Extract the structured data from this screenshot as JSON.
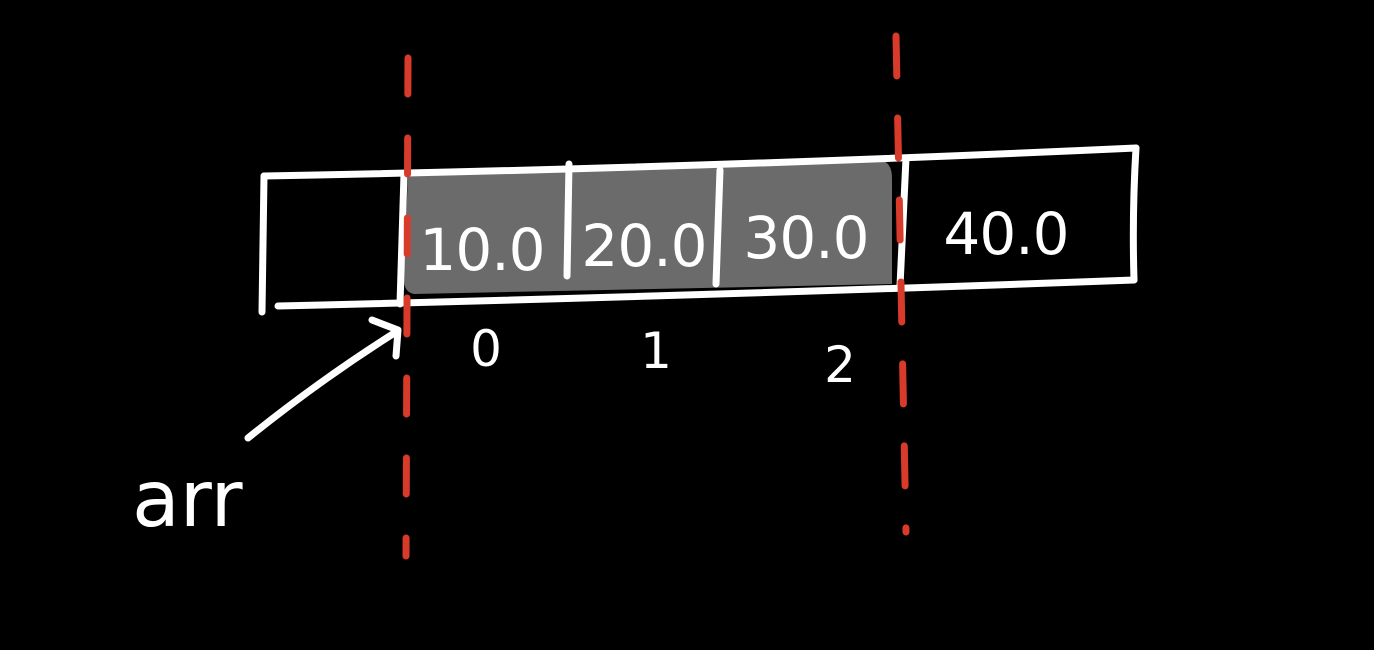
{
  "colors": {
    "background": "#000000",
    "ink": "#ffffff",
    "highlight": "#6b6b6b",
    "boundary": "#d93b2b"
  },
  "array": {
    "cells": [
      {
        "value": "",
        "index": "",
        "highlighted": false
      },
      {
        "value": "10.0",
        "index": "0",
        "highlighted": true
      },
      {
        "value": "20.0",
        "index": "1",
        "highlighted": true
      },
      {
        "value": "30.0",
        "index": "2",
        "highlighted": true
      },
      {
        "value": "40.0",
        "index": "",
        "highlighted": false
      }
    ]
  },
  "pointer": {
    "label": "arr"
  }
}
